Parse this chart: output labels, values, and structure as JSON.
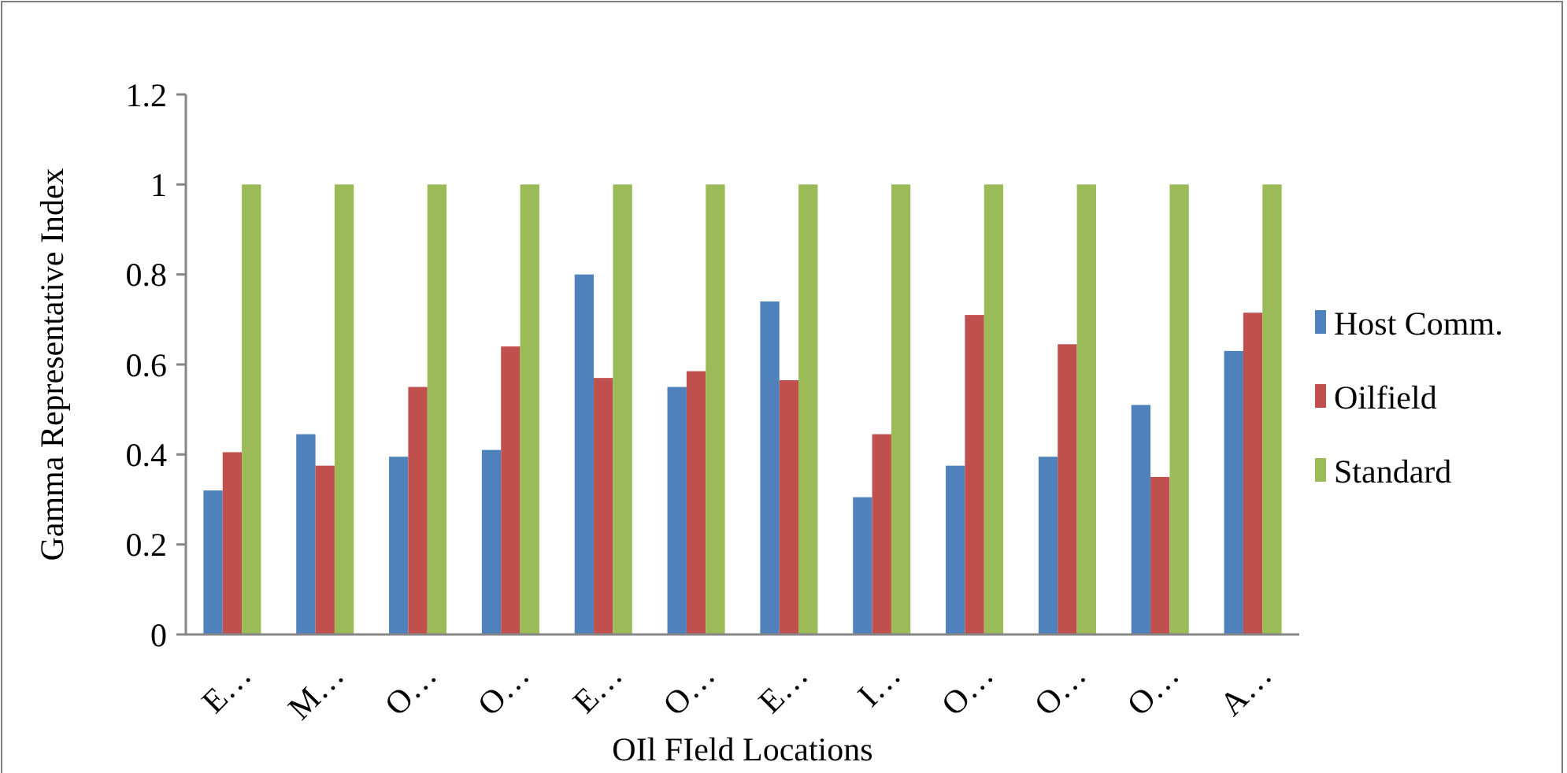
{
  "chart_data": {
    "type": "bar",
    "xlabel": "OIl FIeld Locations",
    "ylabel": "Gamma Representative Index",
    "categories": [
      "E…",
      "M…",
      "O…",
      "O…",
      "E…",
      "O…",
      "E…",
      "I…",
      "O…",
      "O…",
      "O…",
      "A…"
    ],
    "series": [
      {
        "name": "Host Comm.",
        "color": "#4f81bd",
        "values": [
          0.32,
          0.445,
          0.395,
          0.41,
          0.8,
          0.55,
          0.74,
          0.305,
          0.375,
          0.395,
          0.51,
          0.63
        ]
      },
      {
        "name": "Oilfield",
        "color": "#c0504d",
        "values": [
          0.405,
          0.375,
          0.55,
          0.64,
          0.57,
          0.585,
          0.565,
          0.445,
          0.71,
          0.645,
          0.35,
          0.715
        ]
      },
      {
        "name": "Standard",
        "color": "#9bbb59",
        "values": [
          1,
          1,
          1,
          1,
          1,
          1,
          1,
          1,
          1,
          1,
          1,
          1
        ]
      }
    ],
    "ylim": [
      0,
      1.2
    ],
    "yticks": [
      0,
      0.2,
      0.4,
      0.6,
      0.8,
      1,
      1.2
    ],
    "grid": false,
    "legend": "right"
  }
}
